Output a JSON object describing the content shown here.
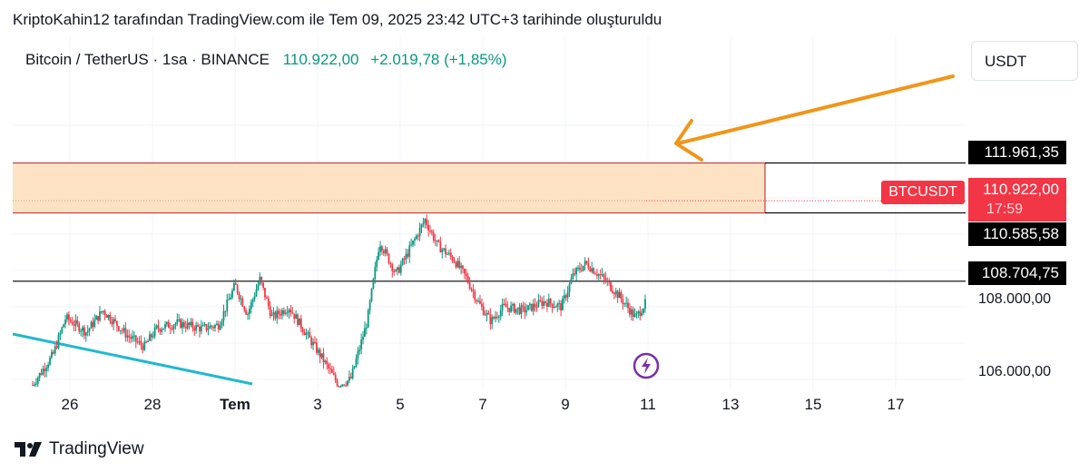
{
  "caption": "KriptoKahin12 tarafından TradingView.com ile Tem 09, 2025 23:42 UTC+3 tarihinde oluşturuldu",
  "legend": {
    "symbol": "Bitcoin / TetherUS · 1sa · BINANCE",
    "price": "110.922,00",
    "change": "+2.019,78 (+1,85%)"
  },
  "unit_button": "USDT",
  "price_tags": {
    "upper": "111.961,35",
    "lower_zone": "110.585,58",
    "support": "108.704,75"
  },
  "last_price": {
    "symbol": "BTCUSDT",
    "value": "110.922,00",
    "countdown": "17:59"
  },
  "y_axis_labels": [
    "108.000,00",
    "106.000,00"
  ],
  "brand": "TradingView",
  "icons": {
    "flash": "lightning-event-icon",
    "logo": "tradingview-logo-icon"
  },
  "colors": {
    "zone_fill": "#fde3c4",
    "zone_border": "#c43c3c",
    "arrow": "#f0961a",
    "trendline": "#22b8cf",
    "up": "#089981",
    "down": "#f23645",
    "event": "#7b2fa8"
  },
  "chart_data": {
    "type": "candlestick",
    "title": "Bitcoin / TetherUS · 1sa · BINANCE",
    "timeframe": "1sa",
    "x_ticks": [
      "26",
      "28",
      "Tem",
      "3",
      "5",
      "7",
      "9",
      "11",
      "13",
      "15",
      "17"
    ],
    "y_ticks": [
      106000,
      108000
    ],
    "ylim": [
      105700,
      113300
    ],
    "last_price": 110922.0,
    "change": 2019.78,
    "change_pct": 1.85,
    "resistance_zone": {
      "top": 111961.35,
      "bottom": 110585.58
    },
    "support_line": 108704.75,
    "price_path": [
      [
        "25.1",
        105850
      ],
      [
        "25.6",
        106700
      ],
      [
        "25.9",
        107700
      ],
      [
        "26.4",
        107300
      ],
      [
        "26.8",
        107900
      ],
      [
        "27.4",
        107200
      ],
      [
        "27.8",
        106900
      ],
      [
        "28.1",
        107400
      ],
      [
        "28.6",
        107550
      ],
      [
        "29.2",
        107400
      ],
      [
        "29.6",
        107500
      ],
      [
        "30.0",
        108600
      ],
      [
        "30.3",
        107800
      ],
      [
        "30.6",
        108750
      ],
      [
        "30.9",
        107700
      ],
      [
        "31.3",
        108000
      ],
      [
        "31.7",
        107300
      ],
      [
        "32.1",
        106600
      ],
      [
        "32.5",
        105850
      ],
      [
        "32.8",
        106000
      ],
      [
        "33.2",
        107600
      ],
      [
        "33.5",
        109800
      ],
      [
        "33.9",
        108900
      ],
      [
        "34.1",
        109300
      ],
      [
        "34.6",
        110400
      ],
      [
        "34.9",
        109700
      ],
      [
        "35.3",
        109300
      ],
      [
        "35.6",
        108800
      ],
      [
        "35.9",
        108100
      ],
      [
        "36.2",
        107600
      ],
      [
        "36.5",
        108000
      ],
      [
        "37.0",
        107900
      ],
      [
        "37.5",
        108150
      ],
      [
        "37.9",
        108000
      ],
      [
        "38.2",
        108900
      ],
      [
        "38.5",
        109200
      ],
      [
        "38.9",
        108800
      ],
      [
        "39.3",
        108300
      ],
      [
        "39.7",
        107700
      ],
      [
        "40.0",
        108200
      ],
      [
        "40.3",
        108900
      ],
      [
        "40.6",
        108400
      ],
      [
        "40.9",
        108800
      ],
      [
        "41.2",
        108500
      ],
      [
        "41.5",
        108900
      ],
      [
        "41.7",
        109200
      ],
      [
        "41.85",
        109400
      ],
      [
        "41.9",
        111100
      ],
      [
        "42.0",
        110922
      ]
    ],
    "annotations": [
      "arrow pointing to top of resistance zone",
      "descending trendline"
    ]
  }
}
